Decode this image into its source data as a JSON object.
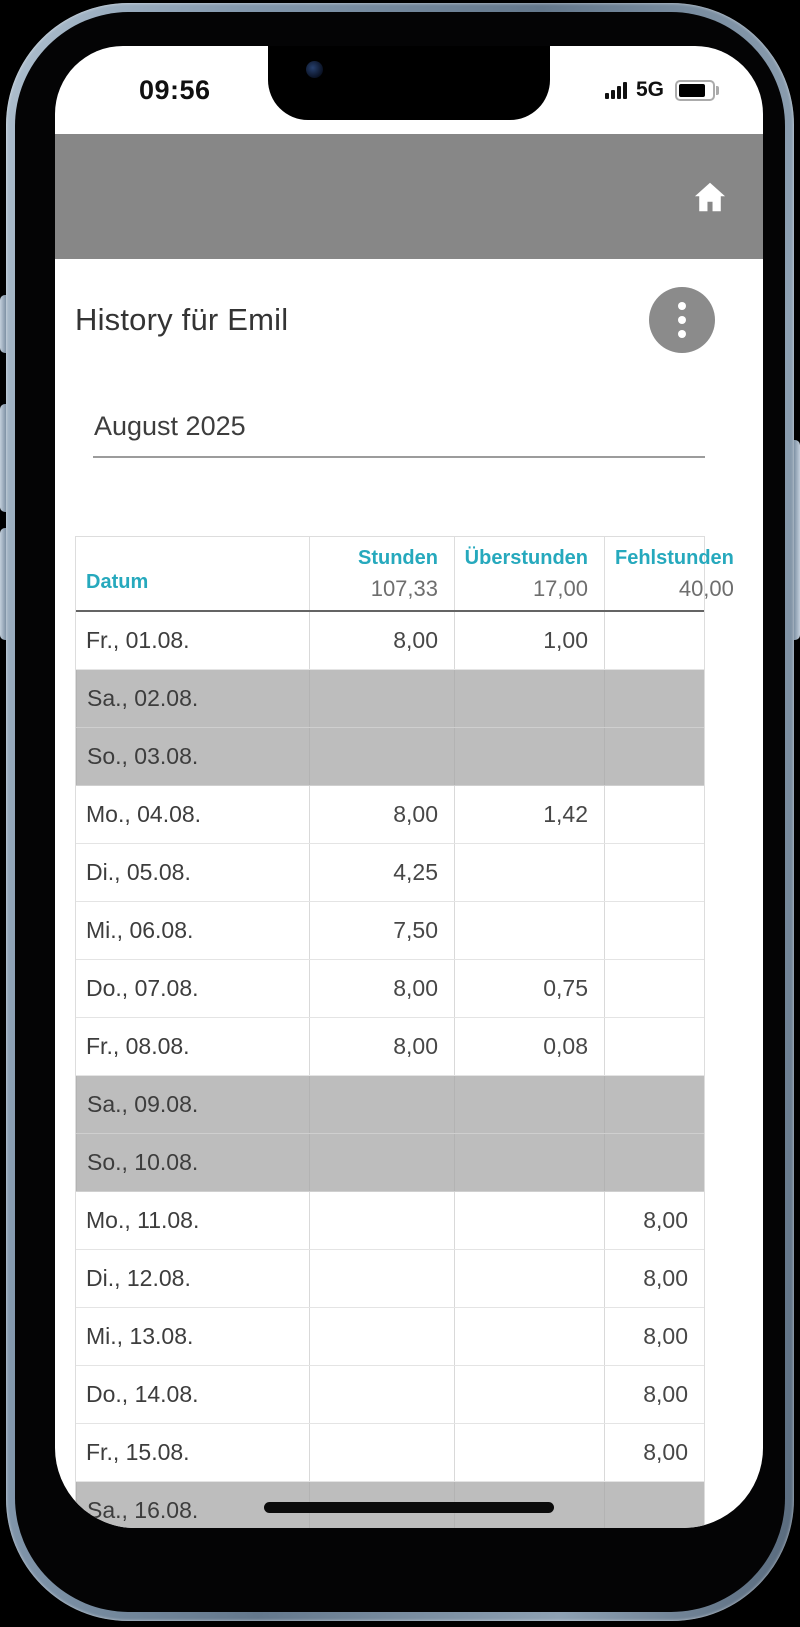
{
  "status_bar": {
    "time": "09:56",
    "network": "5G"
  },
  "app_bar": {
    "home_icon": "home-icon"
  },
  "page": {
    "title": "History für Emil",
    "menu_icon": "kebab-menu-icon"
  },
  "month_field": {
    "value": "August 2025"
  },
  "table": {
    "columns": [
      {
        "label": "Datum",
        "total": ""
      },
      {
        "label": "Stunden",
        "total": "107,33"
      },
      {
        "label": "Überstunden",
        "total": "17,00"
      },
      {
        "label": "Fehlstunden",
        "total": "40,00"
      }
    ],
    "rows": [
      {
        "date": "Fr., 01.08.",
        "stunden": "8,00",
        "ueberstunden": "1,00",
        "fehlstunden": "",
        "weekend": false
      },
      {
        "date": "Sa., 02.08.",
        "stunden": "",
        "ueberstunden": "",
        "fehlstunden": "",
        "weekend": true
      },
      {
        "date": "So., 03.08.",
        "stunden": "",
        "ueberstunden": "",
        "fehlstunden": "",
        "weekend": true
      },
      {
        "date": "Mo., 04.08.",
        "stunden": "8,00",
        "ueberstunden": "1,42",
        "fehlstunden": "",
        "weekend": false
      },
      {
        "date": "Di., 05.08.",
        "stunden": "4,25",
        "ueberstunden": "",
        "fehlstunden": "",
        "weekend": false
      },
      {
        "date": "Mi., 06.08.",
        "stunden": "7,50",
        "ueberstunden": "",
        "fehlstunden": "",
        "weekend": false
      },
      {
        "date": "Do., 07.08.",
        "stunden": "8,00",
        "ueberstunden": "0,75",
        "fehlstunden": "",
        "weekend": false
      },
      {
        "date": "Fr., 08.08.",
        "stunden": "8,00",
        "ueberstunden": "0,08",
        "fehlstunden": "",
        "weekend": false
      },
      {
        "date": "Sa., 09.08.",
        "stunden": "",
        "ueberstunden": "",
        "fehlstunden": "",
        "weekend": true
      },
      {
        "date": "So., 10.08.",
        "stunden": "",
        "ueberstunden": "",
        "fehlstunden": "",
        "weekend": true
      },
      {
        "date": "Mo., 11.08.",
        "stunden": "",
        "ueberstunden": "",
        "fehlstunden": "8,00",
        "weekend": false
      },
      {
        "date": "Di., 12.08.",
        "stunden": "",
        "ueberstunden": "",
        "fehlstunden": "8,00",
        "weekend": false
      },
      {
        "date": "Mi., 13.08.",
        "stunden": "",
        "ueberstunden": "",
        "fehlstunden": "8,00",
        "weekend": false
      },
      {
        "date": "Do., 14.08.",
        "stunden": "",
        "ueberstunden": "",
        "fehlstunden": "8,00",
        "weekend": false
      },
      {
        "date": "Fr., 15.08.",
        "stunden": "",
        "ueberstunden": "",
        "fehlstunden": "8,00",
        "weekend": false
      },
      {
        "date": "Sa., 16.08.",
        "stunden": "",
        "ueberstunden": "",
        "fehlstunden": "",
        "weekend": true
      }
    ]
  },
  "colors": {
    "accent": "#26a9bd",
    "bar_gray": "#878787",
    "weekend_row": "#bdbdbd"
  }
}
